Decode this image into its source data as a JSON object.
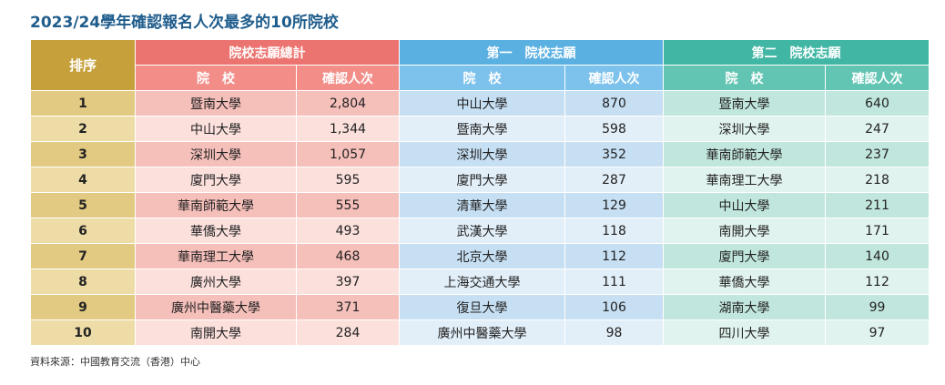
{
  "title": "2023/24學年確認報名人次最多的10所院校",
  "header": {
    "rank": "排序",
    "groups": [
      {
        "title": "院校志願總計",
        "school": "院　校",
        "count": "確認人次"
      },
      {
        "title": "第一　院校志願",
        "school": "院　校",
        "count": "確認人次"
      },
      {
        "title": "第二　院校志願",
        "school": "院　校",
        "count": "確認人次"
      }
    ]
  },
  "rows": [
    [
      "1",
      "暨南大學",
      "2,804",
      "中山大學",
      "870",
      "暨南大學",
      "640"
    ],
    [
      "2",
      "中山大學",
      "1,344",
      "暨南大學",
      "598",
      "深圳大學",
      "247"
    ],
    [
      "3",
      "深圳大學",
      "1,057",
      "深圳大學",
      "352",
      "華南師範大學",
      "237"
    ],
    [
      "4",
      "廈門大學",
      "595",
      "廈門大學",
      "287",
      "華南理工大學",
      "218"
    ],
    [
      "5",
      "華南師範大學",
      "555",
      "清華大學",
      "129",
      "中山大學",
      "211"
    ],
    [
      "6",
      "華僑大學",
      "493",
      "武漢大學",
      "118",
      "南開大學",
      "171"
    ],
    [
      "7",
      "華南理工大學",
      "468",
      "北京大學",
      "112",
      "廈門大學",
      "140"
    ],
    [
      "8",
      "廣州大學",
      "397",
      "上海交通大學",
      "111",
      "華僑大學",
      "112"
    ],
    [
      "9",
      "廣州中醫藥大學",
      "371",
      "復旦大學",
      "106",
      "湖南大學",
      "99"
    ],
    [
      "10",
      "南開大學",
      "284",
      "廣州中醫藥大學",
      "98",
      "四川大學",
      "97"
    ]
  ],
  "source": "資料來源：中國教育交流（香港）中心"
}
